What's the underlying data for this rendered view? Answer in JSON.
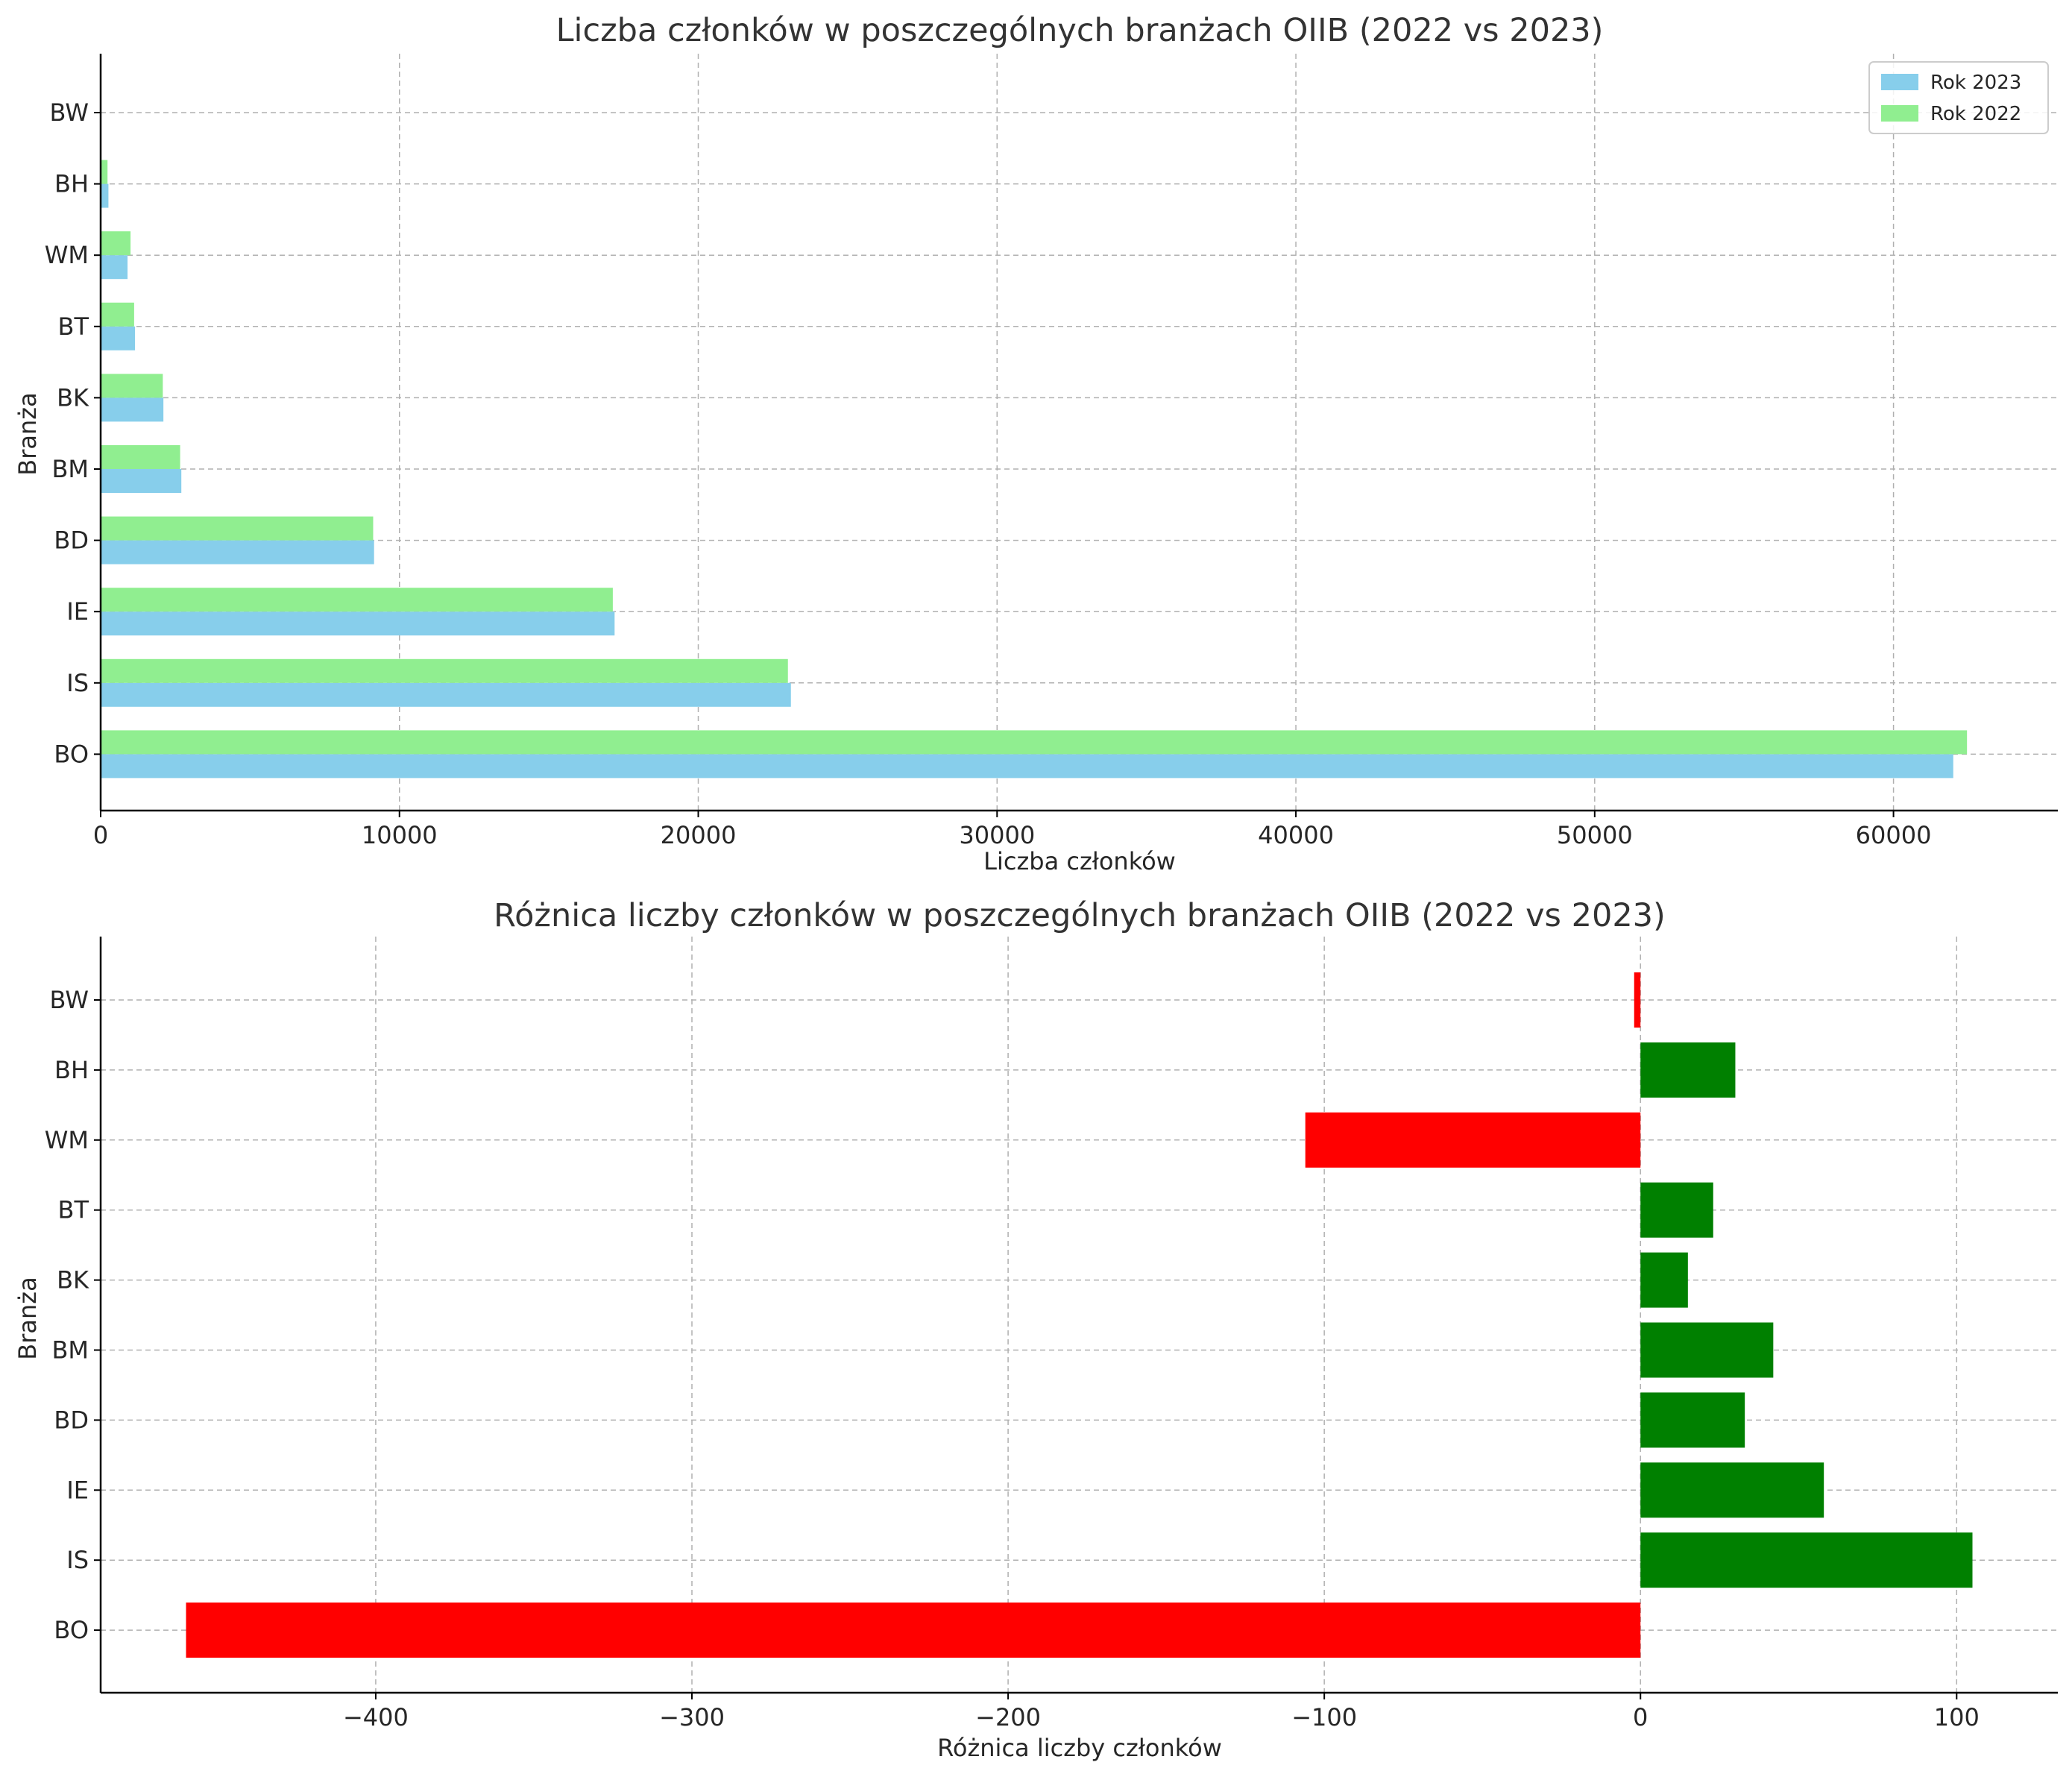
{
  "chart_data": [
    {
      "type": "bar",
      "orientation": "horizontal",
      "title": "Liczba członków w poszczególnych branżach OIIB (2022 vs 2023)",
      "xlabel": "Liczba członków",
      "ylabel": "Branża",
      "categories": [
        "BO",
        "IS",
        "IE",
        "BD",
        "BM",
        "BK",
        "BT",
        "WM",
        "BH",
        "BW"
      ],
      "series": [
        {
          "name": "Rok 2023",
          "color": "#87CEEB",
          "values": [
            62000,
            23100,
            17200,
            9150,
            2700,
            2100,
            1150,
            900,
            260,
            20
          ]
        },
        {
          "name": "Rok 2022",
          "color": "#90EE90",
          "values": [
            62460,
            23000,
            17140,
            9120,
            2660,
            2080,
            1120,
            1000,
            230,
            22
          ]
        }
      ],
      "xlim": [
        0,
        65500
      ],
      "xticks": [
        0,
        10000,
        20000,
        30000,
        40000,
        50000,
        60000
      ],
      "grid": true,
      "legend": "top-right"
    },
    {
      "type": "bar",
      "orientation": "horizontal",
      "title": "Różnica liczby członków w poszczególnych branżach OIIB (2022 vs 2023)",
      "xlabel": "Różnica liczby członków",
      "ylabel": "Branża",
      "categories": [
        "BO",
        "IS",
        "IE",
        "BD",
        "BM",
        "BK",
        "BT",
        "WM",
        "BH",
        "BW"
      ],
      "values": [
        -460,
        105,
        58,
        33,
        42,
        15,
        23,
        -106,
        30,
        -2
      ],
      "positive_color": "#008000",
      "negative_color": "#FF0000",
      "xlim": [
        -487,
        132
      ],
      "xticks": [
        -400,
        -300,
        -200,
        -100,
        0,
        100
      ],
      "grid": true
    }
  ]
}
